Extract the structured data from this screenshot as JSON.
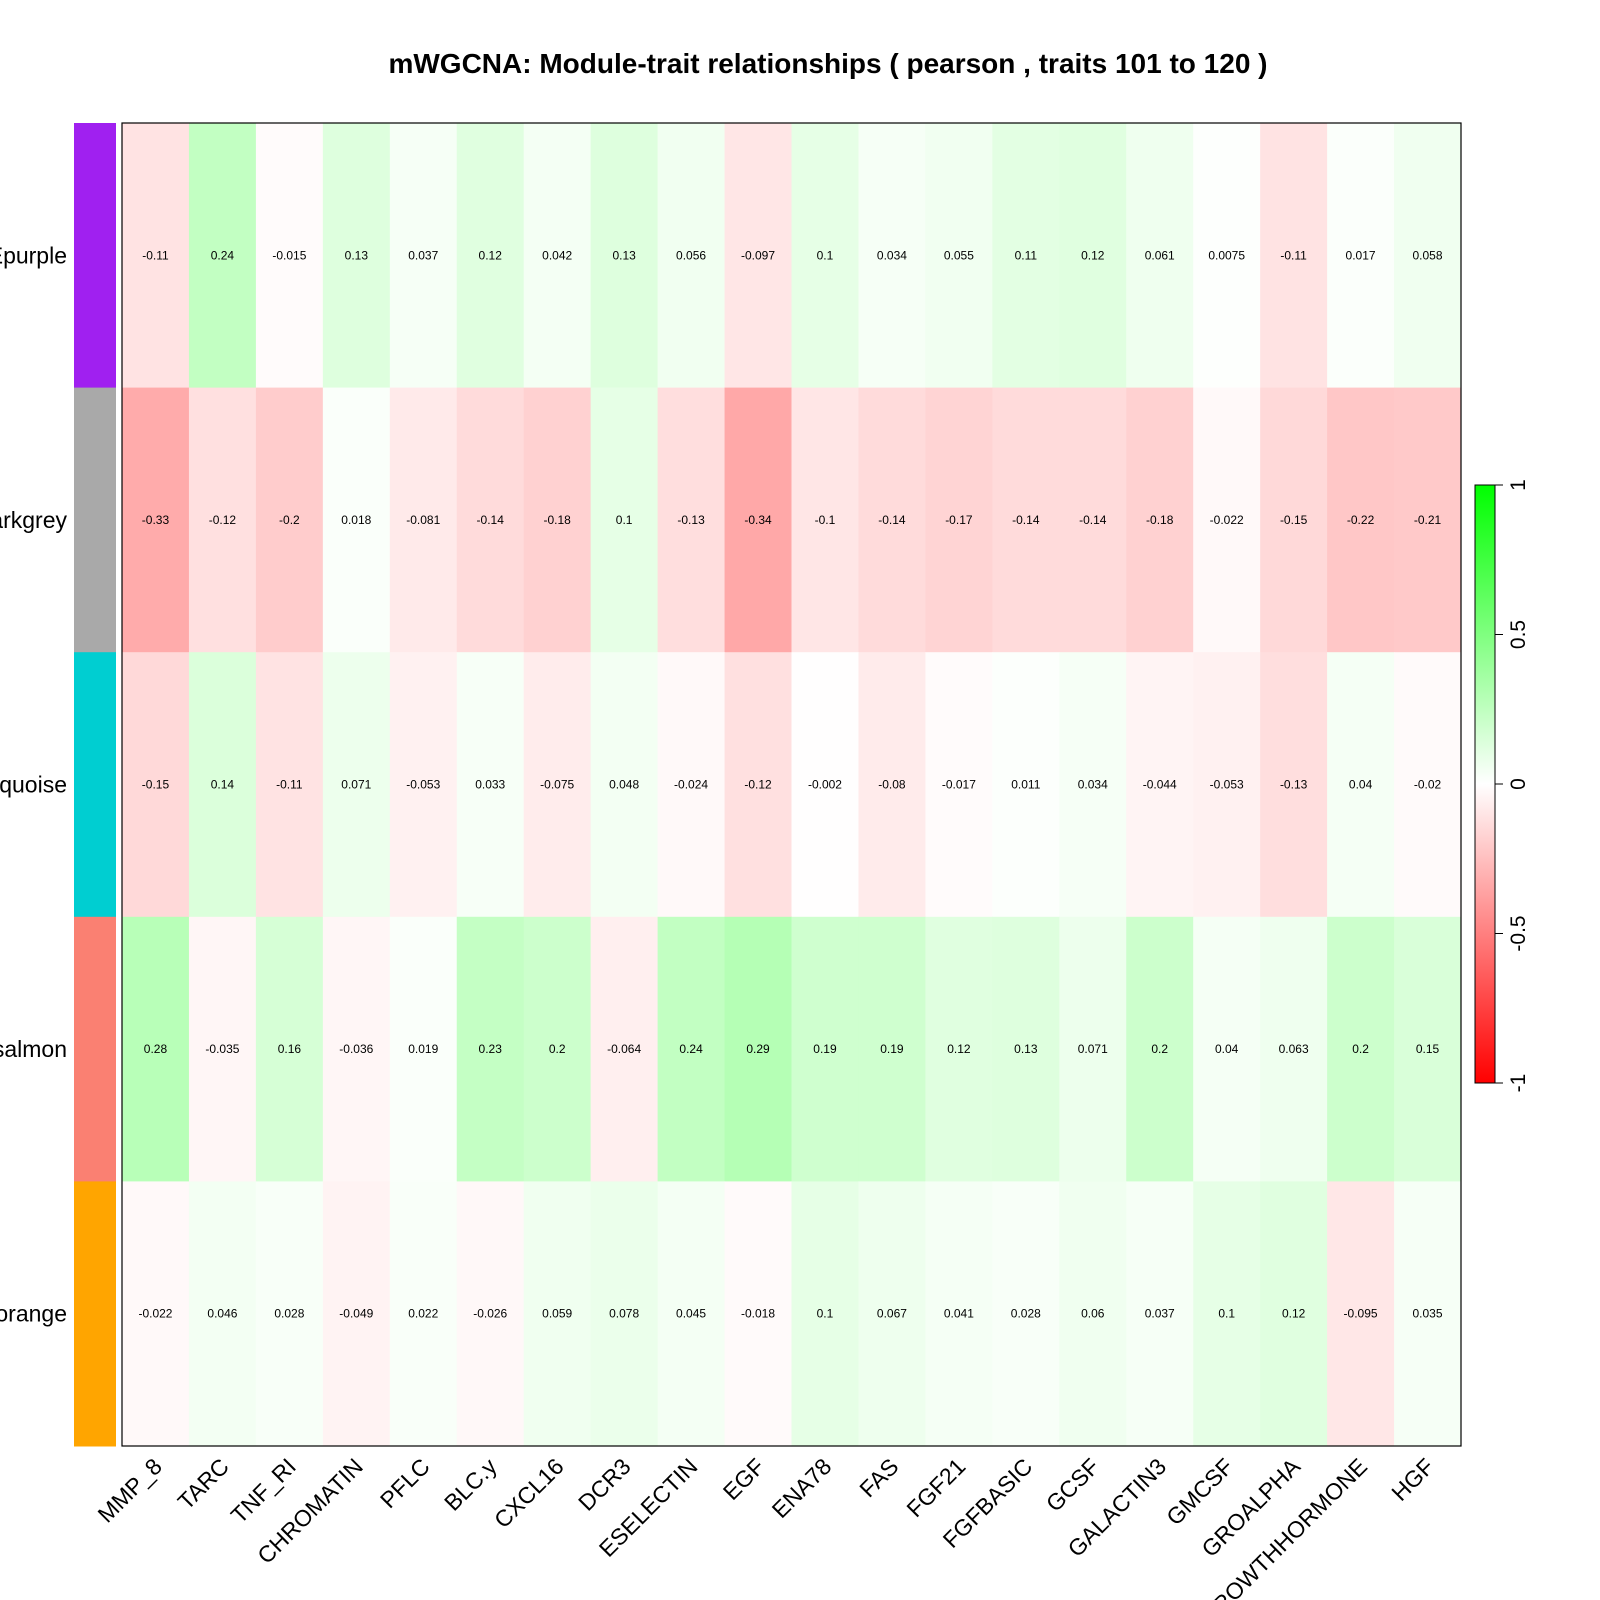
{
  "chart_data": {
    "type": "heatmap",
    "title": "mWGCNA: Module-trait relationships ( pearson , traits  101  to  120 )",
    "categories": [
      "MMP_8",
      "TARC",
      "TNF_RI",
      "CHROMATIN",
      "PFLC",
      "BLC.y",
      "CXCL16",
      "DCR3",
      "ESELECTIN",
      "EGF",
      "ENA78",
      "FAS",
      "FGF21",
      "FGFBASIC",
      "GCSF",
      "GALACTIN3",
      "GMCSF",
      "GROALPHA",
      "GROWTHHORMONE",
      "HGF"
    ],
    "rows": [
      {
        "label": "MEpurple",
        "color": "#A020F0",
        "values": [
          -0.11,
          0.24,
          -0.015,
          0.13,
          0.037,
          0.12,
          0.042,
          0.13,
          0.056,
          -0.097,
          0.1,
          0.034,
          0.055,
          0.11,
          0.12,
          0.061,
          0.0075,
          -0.11,
          0.017,
          0.058
        ]
      },
      {
        "label": "MEdarkgrey",
        "color": "#A9A9A9",
        "values": [
          -0.33,
          -0.12,
          -0.2,
          0.018,
          -0.081,
          -0.14,
          -0.18,
          0.1,
          -0.13,
          -0.34,
          -0.1,
          -0.14,
          -0.17,
          -0.14,
          -0.14,
          -0.18,
          -0.022,
          -0.15,
          -0.22,
          -0.21
        ]
      },
      {
        "label": "MEturquoise",
        "color": "#00CED1",
        "values": [
          -0.15,
          0.14,
          -0.11,
          0.071,
          -0.053,
          0.033,
          -0.075,
          0.048,
          -0.024,
          -0.12,
          -0.002,
          -0.08,
          -0.017,
          0.011,
          0.034,
          -0.044,
          -0.053,
          -0.13,
          0.04,
          -0.02
        ]
      },
      {
        "label": "MEsalmon",
        "color": "#FA8072",
        "values": [
          0.28,
          -0.035,
          0.16,
          -0.036,
          0.019,
          0.23,
          0.2,
          -0.064,
          0.24,
          0.29,
          0.19,
          0.19,
          0.12,
          0.13,
          0.071,
          0.2,
          0.04,
          0.063,
          0.2,
          0.15
        ]
      },
      {
        "label": "MEorange",
        "color": "#FFA500",
        "values": [
          -0.022,
          0.046,
          0.028,
          -0.049,
          0.022,
          -0.026,
          0.059,
          0.078,
          0.045,
          -0.018,
          0.1,
          0.067,
          0.041,
          0.028,
          0.06,
          0.037,
          0.1,
          0.12,
          -0.095,
          0.035
        ]
      }
    ],
    "zlim": [
      -1,
      1
    ],
    "legend": {
      "ticks": [
        -1,
        -0.5,
        0,
        0.5,
        1
      ],
      "placement": "right"
    },
    "colors": {
      "low": "#FF0000",
      "mid": "#FFFFFF",
      "high": "#00FF00"
    }
  }
}
